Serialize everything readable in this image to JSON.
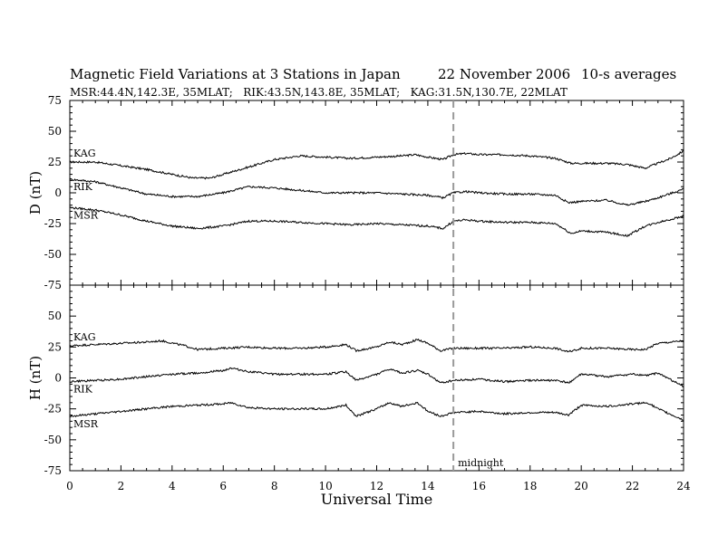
{
  "header": {
    "title": "Magnetic Field Variations at 3 Stations in Japan",
    "date": "22 November 2006",
    "averages": "10-s averages",
    "subtitle": "MSR:44.4N,142.3E, 35MLAT;   RIK:43.5N,143.8E, 35MLAT;   KAG:31.5N,130.7E, 22MLAT"
  },
  "xlabel": "Universal Time",
  "midnight_label": "midnight",
  "midnight_ut": 15,
  "chart_data": [
    {
      "type": "line",
      "panel": "D",
      "ylabel": "D (nT)",
      "ylim": [
        -75,
        75
      ],
      "xlim": [
        0,
        24
      ],
      "yticks": [
        "75",
        "50",
        "25",
        "0",
        "-25",
        "-50",
        "-75"
      ],
      "xticks": [
        "0",
        "2",
        "4",
        "6",
        "8",
        "10",
        "12",
        "14",
        "16",
        "18",
        "20",
        "22",
        "24"
      ],
      "series": [
        {
          "name": "KAG",
          "x": [
            0,
            1,
            2,
            3,
            4,
            4.8,
            5.5,
            6,
            7,
            8,
            9,
            10,
            11,
            12,
            13,
            13.5,
            14,
            14.6,
            15,
            15.5,
            16,
            17,
            18,
            19,
            19.6,
            20,
            21,
            21.8,
            22.5,
            23,
            23.5,
            24
          ],
          "y": [
            25,
            25,
            22,
            19,
            15,
            12,
            12,
            15,
            21,
            27,
            30,
            29,
            28,
            29,
            30,
            31,
            29,
            27,
            31,
            32,
            31,
            31,
            30,
            28,
            24,
            24,
            24,
            23,
            20,
            24,
            28,
            34
          ]
        },
        {
          "name": "RIK",
          "x": [
            0,
            1,
            2,
            3,
            4,
            5,
            6,
            7,
            8,
            9,
            10,
            11,
            12,
            13,
            14,
            14.6,
            15,
            15.5,
            16,
            17,
            18,
            19,
            19.5,
            20,
            21,
            21.8,
            22.5,
            23,
            24
          ],
          "y": [
            11,
            9,
            4,
            -1,
            -3,
            -3,
            0,
            5,
            4,
            2,
            0,
            0,
            0,
            -1,
            -2,
            -4,
            0,
            1,
            0,
            -1,
            -1,
            -2,
            -8,
            -7,
            -6,
            -10,
            -7,
            -4,
            3
          ]
        },
        {
          "name": "MSR",
          "x": [
            0,
            1,
            2,
            3,
            4,
            5,
            6,
            7,
            8,
            9,
            10,
            11,
            12,
            13,
            14,
            14.6,
            15,
            15.5,
            16,
            17,
            18,
            19,
            19.6,
            20,
            21,
            21.8,
            22.5,
            23,
            24
          ],
          "y": [
            -12,
            -14,
            -18,
            -23,
            -27,
            -29,
            -27,
            -23,
            -23,
            -24,
            -25,
            -26,
            -25,
            -26,
            -27,
            -29,
            -23,
            -22,
            -23,
            -24,
            -24,
            -25,
            -33,
            -31,
            -32,
            -35,
            -27,
            -24,
            -19
          ]
        }
      ],
      "series_labels": [
        "KAG",
        "RIK",
        "MSR"
      ]
    },
    {
      "type": "line",
      "panel": "H",
      "ylabel": "H (nT)",
      "ylim": [
        -75,
        75
      ],
      "xlim": [
        0,
        24
      ],
      "yticks": [
        "75",
        "50",
        "25",
        "0",
        "-25",
        "-50",
        "-75"
      ],
      "xticks": [
        "0",
        "2",
        "4",
        "6",
        "8",
        "10",
        "12",
        "14",
        "16",
        "18",
        "20",
        "22",
        "24"
      ],
      "series": [
        {
          "name": "KAG",
          "x": [
            0,
            1,
            2,
            3,
            3.6,
            4.5,
            5,
            6,
            7,
            8,
            9,
            10,
            10.8,
            11.2,
            12,
            12.5,
            13,
            13.6,
            14,
            14.5,
            15,
            16,
            17,
            18,
            19,
            19.5,
            20,
            21,
            22,
            22.5,
            23,
            24
          ],
          "y": [
            26,
            27,
            28,
            29,
            30,
            26,
            23,
            24,
            25,
            24,
            24,
            25,
            27,
            22,
            25,
            29,
            27,
            31,
            28,
            22,
            24,
            24,
            24,
            25,
            24,
            21,
            24,
            24,
            23,
            23,
            28,
            30
          ]
        },
        {
          "name": "RIK",
          "x": [
            0,
            1,
            2,
            3,
            4,
            5,
            6,
            6.3,
            7,
            8,
            9,
            10,
            10.8,
            11.2,
            12,
            12.5,
            13,
            13.6,
            14,
            14.5,
            15,
            16,
            17,
            18,
            19,
            19.5,
            20,
            21,
            22,
            22.6,
            23,
            24
          ],
          "y": [
            -3,
            -2,
            -1,
            1,
            3,
            4,
            6,
            8,
            5,
            3,
            3,
            3,
            5,
            -2,
            3,
            7,
            4,
            6,
            3,
            -4,
            -2,
            -1,
            -3,
            -2,
            -2,
            -4,
            3,
            1,
            3,
            2,
            4,
            -7
          ]
        },
        {
          "name": "MSR",
          "x": [
            0,
            1,
            2,
            3,
            4,
            5,
            6,
            6.3,
            7,
            8,
            9,
            10,
            10.8,
            11.2,
            12,
            12.5,
            13,
            13.6,
            14,
            14.5,
            15,
            16,
            17,
            18,
            19,
            19.5,
            20,
            21,
            22,
            22.6,
            23,
            24
          ],
          "y": [
            -31,
            -29,
            -27,
            -25,
            -23,
            -22,
            -21,
            -20,
            -24,
            -25,
            -25,
            -25,
            -22,
            -31,
            -25,
            -20,
            -23,
            -20,
            -27,
            -31,
            -28,
            -27,
            -29,
            -28,
            -28,
            -30,
            -22,
            -23,
            -21,
            -20,
            -25,
            -34
          ]
        }
      ],
      "series_labels": [
        "KAG",
        "RIK",
        "MSR"
      ]
    }
  ]
}
